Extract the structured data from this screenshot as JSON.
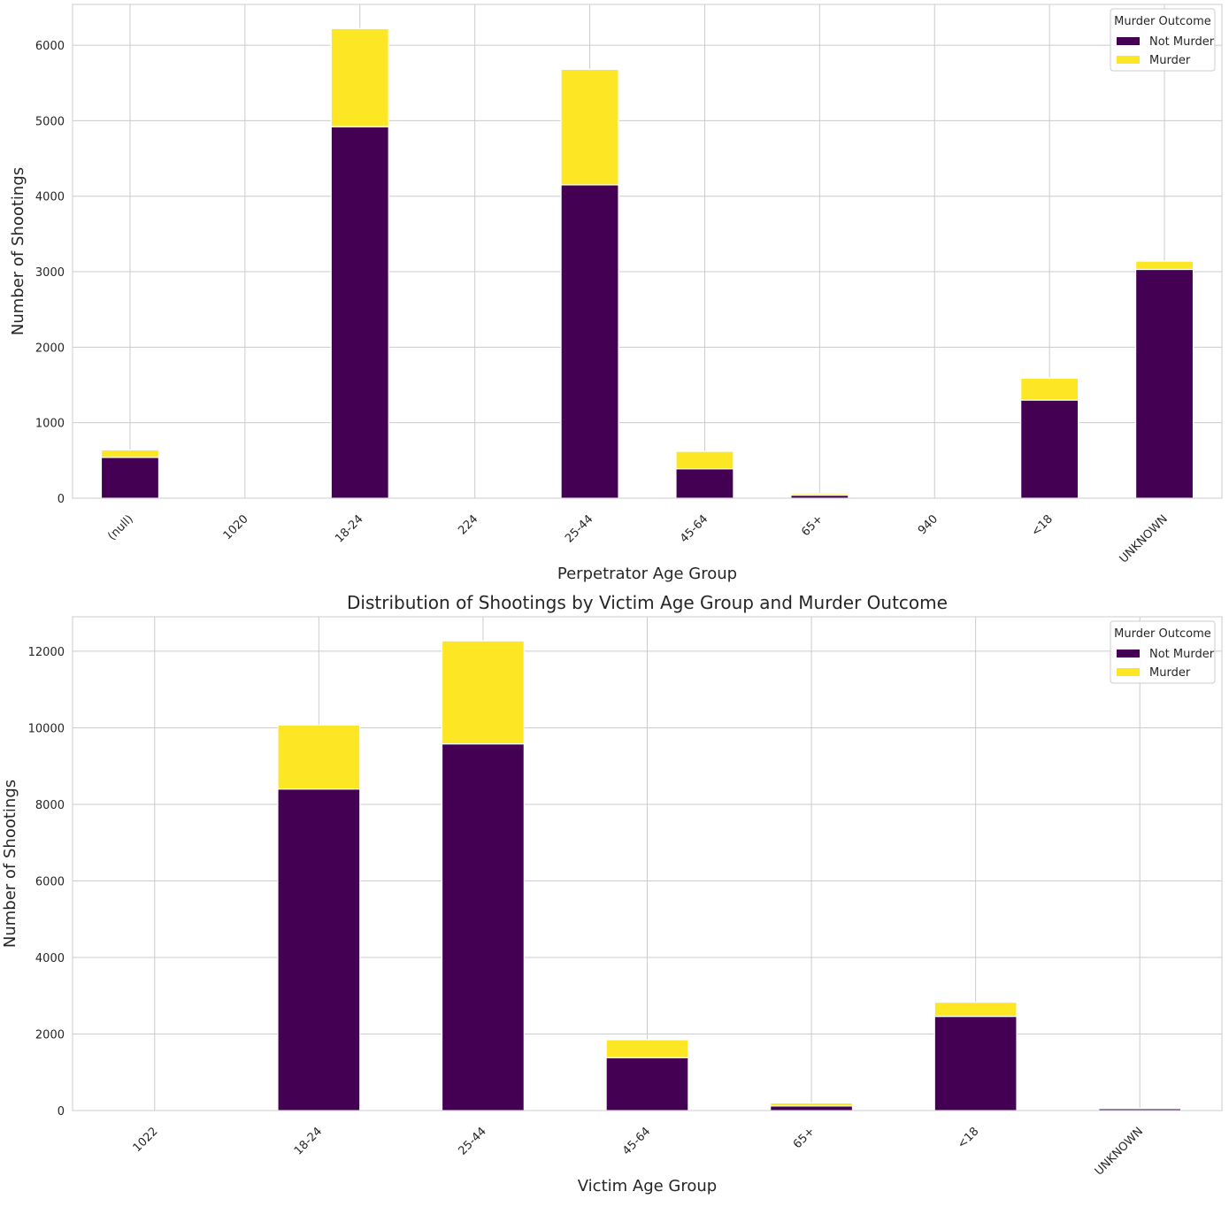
{
  "chart_data": [
    {
      "type": "bar",
      "stacked": true,
      "title": "",
      "xlabel": "Perpetrator Age Group",
      "ylabel": "Number of Shootings",
      "categories": [
        "(null)",
        "1020",
        "18-24",
        "224",
        "25-44",
        "45-64",
        "65+",
        "940",
        "<18",
        "UNKNOWN"
      ],
      "series": [
        {
          "name": "Not Murder",
          "color": "#440154",
          "values": [
            540,
            0,
            4920,
            0,
            4150,
            390,
            40,
            0,
            1300,
            3030
          ]
        },
        {
          "name": "Murder",
          "color": "#fde725",
          "values": [
            100,
            0,
            1300,
            0,
            1530,
            230,
            20,
            0,
            290,
            110
          ]
        }
      ],
      "yticks": [
        0,
        1000,
        2000,
        3000,
        4000,
        5000,
        6000
      ],
      "ylim": [
        0,
        6540
      ],
      "legend": {
        "title": "Murder Outcome",
        "position": "top-right"
      },
      "grid": true
    },
    {
      "type": "bar",
      "stacked": true,
      "title": "Distribution of Shootings by Victim Age Group and Murder Outcome",
      "xlabel": "Victim Age Group",
      "ylabel": "Number of Shootings",
      "categories": [
        "1022",
        "18-24",
        "25-44",
        "45-64",
        "65+",
        "<18",
        "UNKNOWN"
      ],
      "series": [
        {
          "name": "Not Murder",
          "color": "#440154",
          "values": [
            0,
            8400,
            9580,
            1380,
            120,
            2460,
            50
          ]
        },
        {
          "name": "Murder",
          "color": "#fde725",
          "values": [
            0,
            1670,
            2690,
            470,
            80,
            370,
            10
          ]
        }
      ],
      "yticks": [
        0,
        2000,
        4000,
        6000,
        8000,
        10000,
        12000
      ],
      "ylim": [
        0,
        12900
      ],
      "legend": {
        "title": "Murder Outcome",
        "position": "top-right"
      },
      "grid": true
    }
  ]
}
